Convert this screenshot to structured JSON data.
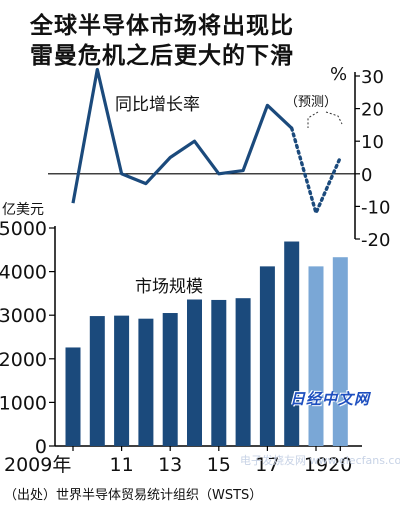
{
  "title_lines": [
    "全球半导体市场将出现比",
    "雷曼危机之后更大的下滑"
  ],
  "source": "（出处）世界半导体贸易统计组织（WSTS）",
  "watermark": "日经中文网",
  "watermark2": "电子发烧友网 www.elecfans.com",
  "colors": {
    "actual": "#1b4a7c",
    "forecast": "#7aa7d6",
    "line": "#1b4a7c",
    "axis": "#000000"
  },
  "chart_data": [
    {
      "type": "line",
      "label": "同比增长率",
      "unit": "%",
      "forecast_label": "（预测）",
      "x": [
        2009,
        2010,
        2011,
        2012,
        2013,
        2014,
        2015,
        2016,
        2017,
        2018,
        2019,
        2020
      ],
      "values": [
        -9,
        32,
        0,
        -3,
        5,
        10,
        0,
        1,
        21,
        14,
        -12,
        5
      ],
      "forecast_from": 2018,
      "ylim": [
        -20,
        30
      ],
      "yticks": [
        "30",
        "20",
        "10",
        "0",
        "-10",
        "-20"
      ]
    },
    {
      "type": "bar",
      "label": "市场规模",
      "unit": "亿美元",
      "categories": [
        2009,
        2010,
        2011,
        2012,
        2013,
        2014,
        2015,
        2016,
        2017,
        2018,
        2019,
        2020
      ],
      "values": [
        2260,
        2980,
        2990,
        2920,
        3050,
        3360,
        3350,
        3390,
        4120,
        4690,
        4120,
        4330
      ],
      "forecast_from": 2019,
      "ylim": [
        0,
        5000
      ],
      "yticks": [
        "0",
        "1000",
        "2000",
        "3000",
        "4000",
        "5000"
      ],
      "xticks": [
        {
          "x": 2009,
          "label": "2009年"
        },
        {
          "x": 2011,
          "label": "11"
        },
        {
          "x": 2013,
          "label": "13"
        },
        {
          "x": 2015,
          "label": "15"
        },
        {
          "x": 2017,
          "label": "17"
        },
        {
          "x": 2019,
          "label": "19"
        },
        {
          "x": 2020,
          "label": "20"
        }
      ]
    }
  ]
}
